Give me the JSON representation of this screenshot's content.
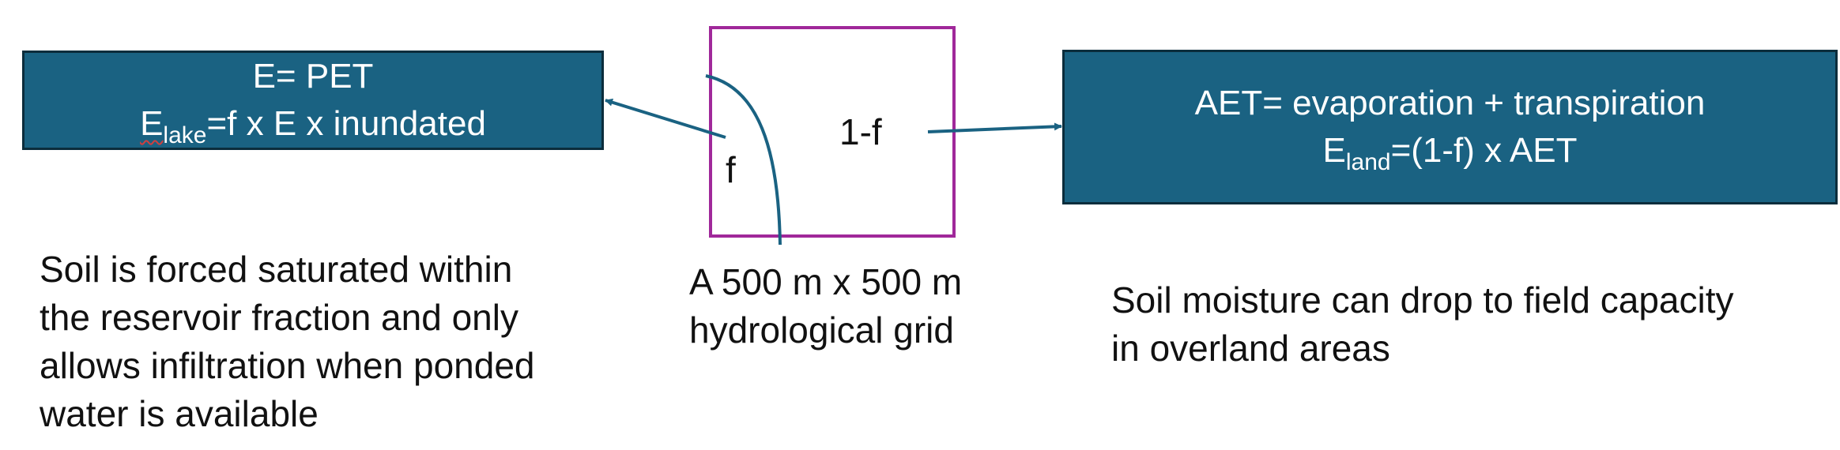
{
  "left_box": {
    "line1": "E= PET",
    "line2_var": "E",
    "line2_sub": "lake",
    "line2_rest": "=f x E x inundated"
  },
  "right_box": {
    "line1": "AET= evaporation + transpiration",
    "line2_var": "E",
    "line2_sub": "land",
    "line2_rest": "=(1-f) x AET"
  },
  "grid": {
    "label_f": "f",
    "label_one_minus_f": "1-f",
    "caption": [
      "A 500 m x 500 m",
      "hydrological grid"
    ],
    "border_color": "#a0289a"
  },
  "left_caption": [
    "Soil is forced saturated within",
    "the reservoir fraction and only",
    "allows infiltration when ponded",
    "water is available"
  ],
  "right_caption": [
    "Soil moisture can drop to field capacity",
    "in overland areas"
  ],
  "colors": {
    "box_fill": "#1a6282",
    "box_border": "#0b2d3c",
    "arrow": "#1a6282",
    "divider": "#1a6282"
  }
}
